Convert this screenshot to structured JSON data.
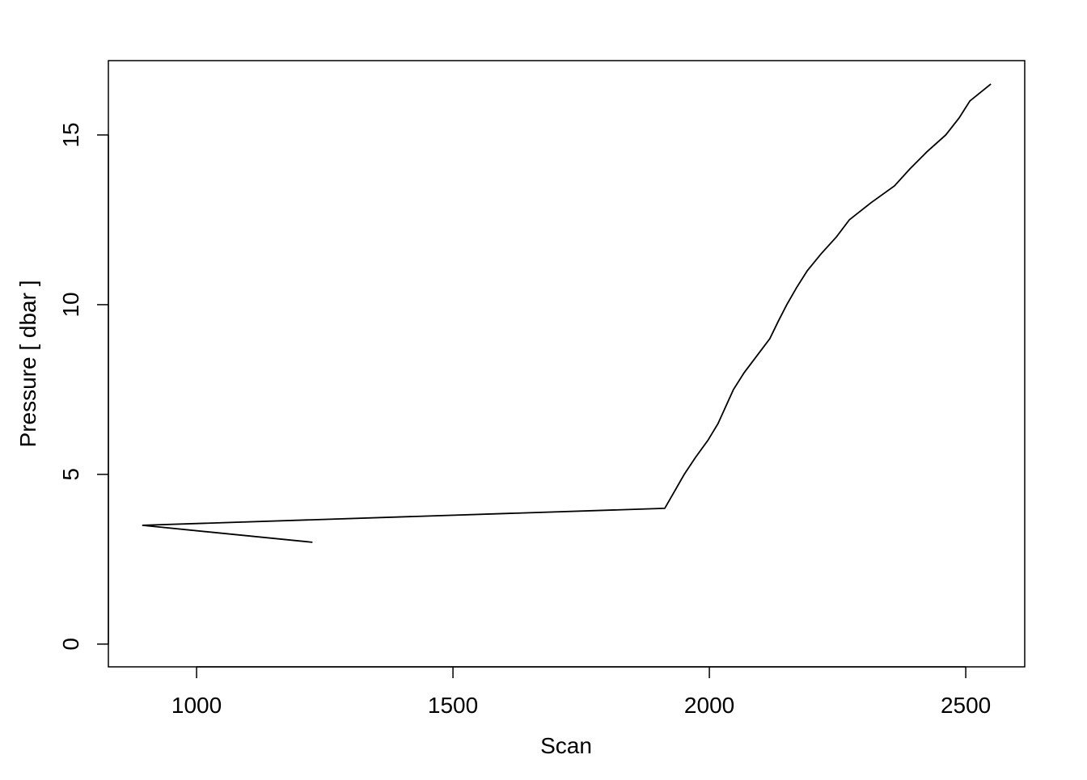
{
  "chart_data": {
    "type": "line",
    "title": "",
    "xlabel": "Scan",
    "ylabel": "Pressure [ dbar ]",
    "xlim": [
      828,
      2615
    ],
    "ylim": [
      -0.67,
      17.19
    ],
    "xticks": [
      1000,
      1500,
      2000,
      2500
    ],
    "yticks": [
      0,
      5,
      10,
      15
    ],
    "xtick_labels": [
      "1000",
      "1500",
      "2000",
      "2500"
    ],
    "ytick_labels": [
      "0",
      "5",
      "10",
      "15"
    ],
    "grid": false,
    "line_color": "#000000",
    "series": [
      {
        "x": [
          1226,
          894,
          1913,
          1932,
          1951,
          1973,
          1997,
          2017,
          2032,
          2047,
          2068,
          2093,
          2118,
          2134,
          2151,
          2170,
          2191,
          2218,
          2248,
          2273,
          2315,
          2361,
          2391,
          2424,
          2461,
          2487,
          2508,
          2549
        ],
        "y": [
          3.0,
          3.5,
          4.0,
          4.5,
          5.0,
          5.5,
          6.0,
          6.5,
          7.0,
          7.5,
          8.0,
          8.5,
          9.0,
          9.5,
          10.0,
          10.5,
          11.0,
          11.5,
          12.0,
          12.5,
          13.0,
          13.5,
          14.0,
          14.5,
          15.0,
          15.5,
          16.0,
          16.5
        ]
      }
    ]
  }
}
